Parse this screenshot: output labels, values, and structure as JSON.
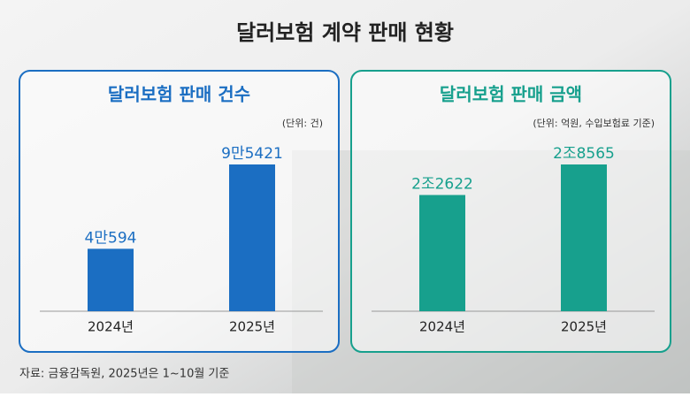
{
  "title": "달러보험 계약 판매 현황",
  "source": "자료: 금융감독원, 2025년은 1~10월 기준",
  "chart_data": [
    {
      "type": "bar",
      "title": "달러보험 판매 건수",
      "unit": "(단위: 건)",
      "color": "#1b6ec2",
      "categories": [
        "2024년",
        "2025년"
      ],
      "values": [
        40594,
        95421
      ],
      "value_labels": [
        "4만594",
        "9만5421"
      ]
    },
    {
      "type": "bar",
      "title": "달러보험 판매 금액",
      "unit": "(단위: 억원, 수입보험료 기준)",
      "color": "#17a08d",
      "categories": [
        "2024년",
        "2025년"
      ],
      "values": [
        22622,
        28565
      ],
      "value_labels": [
        "2조2622",
        "2조8565"
      ]
    }
  ]
}
